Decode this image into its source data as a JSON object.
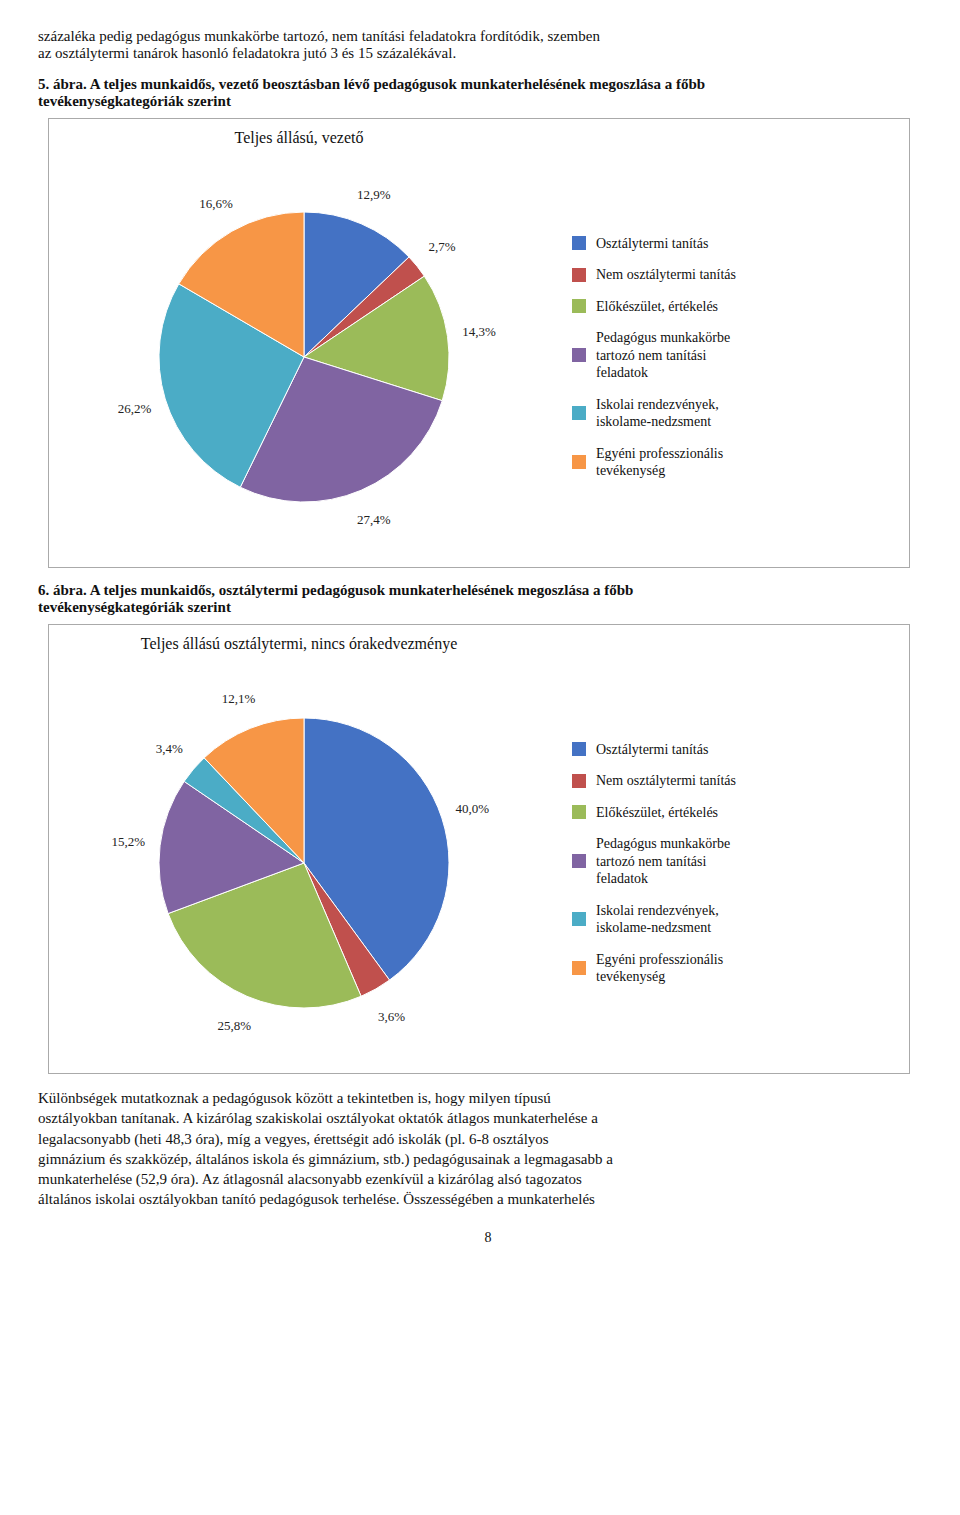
{
  "page_text_top": "százaléka pedig pedagógus munkakörbe tartozó, nem tanítási feladatokra fordítódik, szemben\naz osztálytermi tanárok hasonló feladatokra jutó 3 és 15 százalékával.",
  "chart_data": [
    {
      "type": "pie",
      "subtitle": "5. ábra. A teljes munkaidős, vezető beosztásban lévő pedagógusok munkaterhelésének megoszlása a főbb\ntevékenységkategóriák szerint",
      "title": "Teljes állású, vezető",
      "categories": [
        "Osztálytermi tanítás",
        "Nem osztálytermi tanítás",
        "Előkészület, értékelés",
        "Pedagógus munkakörbe\ntartozó nem tanítási\nfeladatok",
        "Iskolai rendezvények,\niskolame-nedzsment",
        "Egyéni professzionális\ntevékenység"
      ],
      "values": [
        12.9,
        2.7,
        14.3,
        27.4,
        26.2,
        16.6
      ],
      "value_labels": [
        "12,9%",
        "2,7%",
        "14,3%",
        "27,4%",
        "26,2%",
        "16,6%"
      ],
      "colors": [
        "#4472C4",
        "#C0504D",
        "#9BBB59",
        "#8064A2",
        "#4BACC6",
        "#F79646"
      ],
      "data_labels": true,
      "legend": "right"
    },
    {
      "type": "pie",
      "subtitle": "6. ábra. A teljes munkaidős, osztálytermi pedagógusok munkaterhelésének megoszlása a főbb\ntevékenységkategóriák szerint",
      "title": "Teljes állású osztálytermi, nincs órakedvezménye",
      "categories": [
        "Osztálytermi tanítás",
        "Nem osztálytermi tanítás",
        "Előkészület, értékelés",
        "Pedagógus munkakörbe\ntartozó nem tanítási\nfeladatok",
        "Iskolai rendezvények,\niskolame-nedzsment",
        "Egyéni professzionális\ntevékenység"
      ],
      "values": [
        40.0,
        3.6,
        25.8,
        15.2,
        3.4,
        12.1
      ],
      "value_labels": [
        "40,0%",
        "3,6%",
        "25,8%",
        "15,2%",
        "3,4%",
        "12,1%"
      ],
      "colors": [
        "#4472C4",
        "#C0504D",
        "#9BBB59",
        "#8064A2",
        "#4BACC6",
        "#F79646"
      ],
      "data_labels": true,
      "legend": "right"
    }
  ],
  "page_text_bottom": "Különbségek mutatkoznak a pedagógusok között a tekintetben is, hogy milyen típusú\nosztályokban tanítanak. A kizárólag szakiskolai osztályokat oktatók átlagos munkaterhelése a\nlegalacsonyabb (heti 48,3 óra), míg a vegyes, érettségit adó iskolák (pl. 6-8 osztályos\ngimnázium és szakközép, általános iskola és gimnázium, stb.) pedagógusainak a legmagasabb a\nmunkaterhelése (52,9 óra). Az átlagosnál alacsonyabb ezenkívül a kizárólag alsó tagozatos\náltalános iskolai osztályokban tanító pedagógusok terhelése. Összességében a munkaterhelés",
  "page_number": "8"
}
